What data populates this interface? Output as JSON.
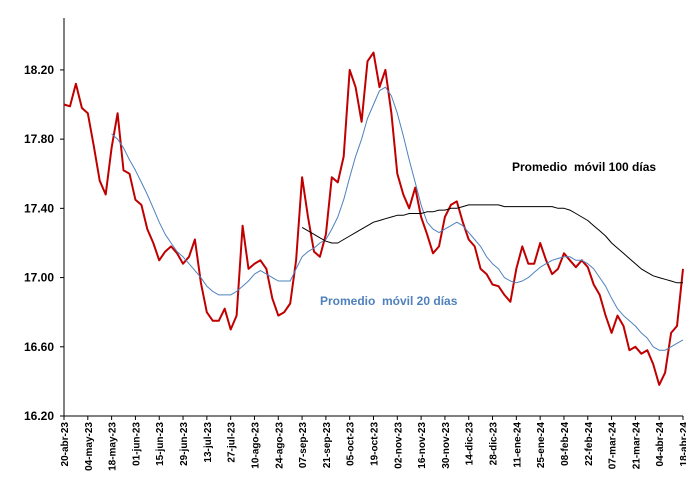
{
  "chart_data": {
    "type": "line",
    "categories": [
      "20-abr-23",
      null,
      null,
      null,
      "04-may-23",
      null,
      null,
      null,
      "18-may-23",
      null,
      null,
      null,
      "01-jun-23",
      null,
      null,
      null,
      "15-jun-23",
      null,
      null,
      null,
      "29-jun-23",
      null,
      null,
      null,
      "13-jul-23",
      null,
      null,
      null,
      "27-jul-23",
      null,
      null,
      null,
      "10-ago-23",
      null,
      null,
      null,
      "24-ago-23",
      null,
      null,
      null,
      "07-sep-23",
      null,
      null,
      null,
      "21-sep-23",
      null,
      null,
      null,
      "05-oct-23",
      null,
      null,
      null,
      "19-oct-23",
      null,
      null,
      null,
      "02-nov-23",
      null,
      null,
      null,
      "16-nov-23",
      null,
      null,
      null,
      "30-nov-23",
      null,
      null,
      null,
      "14-dic-23",
      null,
      null,
      null,
      "28-dic-23",
      null,
      null,
      null,
      "11-ene-24",
      null,
      null,
      null,
      "25-ene-24",
      null,
      null,
      null,
      "08-feb-24",
      null,
      null,
      null,
      "22-feb-24",
      null,
      null,
      null,
      "07-mar-24",
      null,
      null,
      null,
      "21-mar-24",
      null,
      null,
      null,
      "04-abr-24",
      null,
      null,
      null,
      "18-abr-24"
    ],
    "series": [
      {
        "color": "#c00000",
        "values": [
          18.0,
          17.99,
          18.12,
          17.98,
          17.95,
          17.76,
          17.56,
          17.48,
          17.75,
          17.95,
          17.62,
          17.6,
          17.45,
          17.42,
          17.28,
          17.2,
          17.1,
          17.15,
          17.18,
          17.14,
          17.08,
          17.12,
          17.22,
          16.97,
          16.8,
          16.75,
          16.75,
          16.82,
          16.7,
          16.78,
          17.3,
          17.05,
          17.08,
          17.1,
          17.05,
          16.88,
          16.78,
          16.8,
          16.85,
          17.1,
          17.58,
          17.35,
          17.15,
          17.12,
          17.25,
          17.58,
          17.55,
          17.7,
          18.2,
          18.1,
          17.9,
          18.25,
          18.3,
          18.1,
          18.2,
          17.95,
          17.6,
          17.48,
          17.4,
          17.52,
          17.35,
          17.25,
          17.14,
          17.18,
          17.35,
          17.42,
          17.44,
          17.32,
          17.22,
          17.18,
          17.05,
          17.02,
          16.96,
          16.95,
          16.9,
          16.86,
          17.05,
          17.18,
          17.08,
          17.08,
          17.2,
          17.1,
          17.02,
          17.05,
          17.14,
          17.1,
          17.06,
          17.1,
          17.06,
          16.96,
          16.9,
          16.78,
          16.68,
          16.78,
          16.72,
          16.58,
          16.6,
          16.56,
          16.58,
          16.5,
          16.38,
          16.45,
          16.68,
          16.72,
          17.05
        ]
      },
      {
        "name": "Promedio  móvil 20 días",
        "color": "#4f81bd",
        "values": [
          null,
          null,
          null,
          null,
          null,
          null,
          null,
          null,
          17.83,
          17.8,
          17.75,
          17.68,
          17.62,
          17.55,
          17.48,
          17.4,
          17.32,
          17.25,
          17.2,
          17.15,
          17.12,
          17.08,
          17.04,
          17.0,
          16.95,
          16.92,
          16.9,
          16.9,
          16.9,
          16.92,
          16.95,
          16.98,
          17.02,
          17.04,
          17.02,
          17.0,
          16.98,
          16.98,
          16.98,
          17.05,
          17.12,
          17.15,
          17.17,
          17.2,
          17.22,
          17.28,
          17.35,
          17.45,
          17.58,
          17.7,
          17.8,
          17.92,
          18.0,
          18.08,
          18.1,
          18.05,
          17.95,
          17.82,
          17.68,
          17.55,
          17.42,
          17.32,
          17.28,
          17.26,
          17.28,
          17.3,
          17.32,
          17.3,
          17.26,
          17.22,
          17.18,
          17.12,
          17.08,
          17.05,
          17.0,
          16.98,
          16.97,
          16.98,
          17.0,
          17.03,
          17.06,
          17.08,
          17.1,
          17.11,
          17.12,
          17.12,
          17.1,
          17.1,
          17.08,
          17.05,
          17.0,
          16.95,
          16.88,
          16.82,
          16.78,
          16.75,
          16.72,
          16.68,
          16.65,
          16.6,
          16.58,
          16.58,
          16.6,
          16.62,
          16.64
        ]
      },
      {
        "name": "Promedio  móvil 100 días",
        "color": "#000000",
        "values": [
          null,
          null,
          null,
          null,
          null,
          null,
          null,
          null,
          null,
          null,
          null,
          null,
          null,
          null,
          null,
          null,
          null,
          null,
          null,
          null,
          null,
          null,
          null,
          null,
          null,
          null,
          null,
          null,
          null,
          null,
          null,
          null,
          null,
          null,
          null,
          null,
          null,
          null,
          null,
          null,
          17.29,
          17.27,
          17.25,
          17.23,
          17.21,
          17.2,
          17.2,
          17.22,
          17.24,
          17.26,
          17.28,
          17.3,
          17.32,
          17.33,
          17.34,
          17.35,
          17.36,
          17.36,
          17.37,
          17.37,
          17.37,
          17.38,
          17.38,
          17.39,
          17.39,
          17.4,
          17.4,
          17.41,
          17.42,
          17.42,
          17.42,
          17.42,
          17.42,
          17.42,
          17.41,
          17.41,
          17.41,
          17.41,
          17.41,
          17.41,
          17.41,
          17.41,
          17.41,
          17.4,
          17.4,
          17.39,
          17.37,
          17.35,
          17.33,
          17.3,
          17.27,
          17.24,
          17.2,
          17.17,
          17.14,
          17.11,
          17.08,
          17.05,
          17.03,
          17.01,
          17.0,
          16.99,
          16.98,
          16.97,
          16.97
        ]
      }
    ],
    "ylim": [
      16.2,
      18.5
    ],
    "yticks": [
      {
        "value": 16.2,
        "label": "16.20"
      },
      {
        "value": 16.6,
        "label": "16.60"
      },
      {
        "value": 17.0,
        "label": "17.00"
      },
      {
        "value": 17.4,
        "label": "17.40"
      },
      {
        "value": 17.8,
        "label": "17.80"
      },
      {
        "value": 18.2,
        "label": "18.20"
      }
    ],
    "grid": false
  }
}
